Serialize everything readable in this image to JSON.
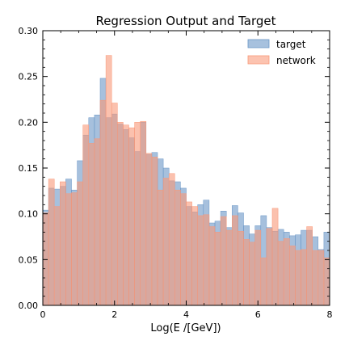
{
  "chart_data": {
    "type": "bar",
    "title": "Regression Output and Target",
    "xlabel": "Log(E /[GeV])",
    "ylabel": "",
    "xlim": [
      0,
      8
    ],
    "ylim": [
      0,
      0.3
    ],
    "xticks": [
      "0",
      "2",
      "4",
      "6",
      "8"
    ],
    "yticks": [
      "0.00",
      "0.05",
      "0.10",
      "0.15",
      "0.20",
      "0.25",
      "0.30"
    ],
    "grid": false,
    "legend_position": "top-right",
    "bin_width": 0.16,
    "x": [
      0.08,
      0.24,
      0.4,
      0.56,
      0.72,
      0.88,
      1.04,
      1.2,
      1.36,
      1.52,
      1.68,
      1.84,
      2.0,
      2.16,
      2.32,
      2.48,
      2.64,
      2.8,
      2.96,
      3.12,
      3.28,
      3.44,
      3.6,
      3.76,
      3.92,
      4.08,
      4.24,
      4.4,
      4.56,
      4.72,
      4.88,
      5.04,
      5.2,
      5.36,
      5.52,
      5.68,
      5.84,
      6.0,
      6.16,
      6.32,
      6.48,
      6.64,
      6.8,
      6.96,
      7.12,
      7.28,
      7.44,
      7.6,
      7.76,
      7.92
    ],
    "series": [
      {
        "name": "target",
        "color": "#6a96c6",
        "values": [
          0.104,
          0.128,
          0.127,
          0.13,
          0.138,
          0.126,
          0.158,
          0.186,
          0.205,
          0.208,
          0.248,
          0.205,
          0.209,
          0.198,
          0.192,
          0.183,
          0.168,
          0.2,
          0.165,
          0.167,
          0.16,
          0.15,
          0.136,
          0.135,
          0.128,
          0.108,
          0.102,
          0.11,
          0.115,
          0.09,
          0.092,
          0.103,
          0.085,
          0.109,
          0.101,
          0.087,
          0.078,
          0.087,
          0.098,
          0.085,
          0.081,
          0.083,
          0.08,
          0.076,
          0.077,
          0.082,
          0.082,
          0.075,
          0.061,
          0.08
        ]
      },
      {
        "name": "network",
        "color": "#f99878",
        "values": [
          0.101,
          0.138,
          0.108,
          0.135,
          0.122,
          0.123,
          0.135,
          0.197,
          0.177,
          0.182,
          0.224,
          0.273,
          0.221,
          0.2,
          0.197,
          0.194,
          0.2,
          0.201,
          0.166,
          0.162,
          0.126,
          0.139,
          0.144,
          0.126,
          0.122,
          0.113,
          0.108,
          0.098,
          0.099,
          0.086,
          0.08,
          0.097,
          0.082,
          0.098,
          0.081,
          0.072,
          0.069,
          0.082,
          0.052,
          0.084,
          0.106,
          0.07,
          0.073,
          0.065,
          0.06,
          0.061,
          0.086,
          0.06,
          0.06,
          0.052
        ]
      }
    ]
  }
}
